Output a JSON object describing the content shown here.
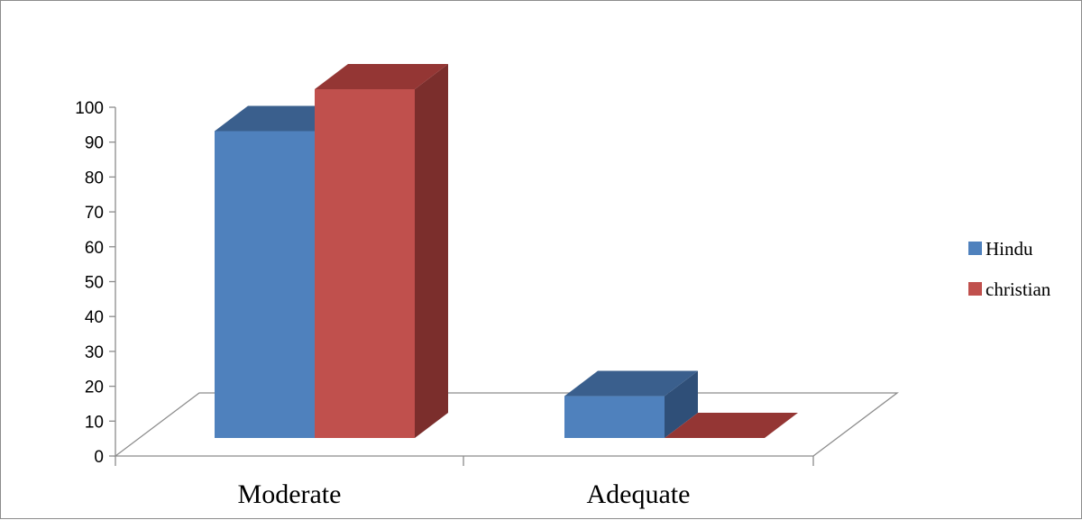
{
  "chart_data": {
    "type": "bar",
    "style": "3d-clustered-column",
    "categories": [
      "Moderate",
      "Adequate"
    ],
    "series": [
      {
        "name": "Hindu",
        "values": [
          88,
          12
        ],
        "color": "#4F81BD",
        "top_color": "#3A5F8D",
        "side_color": "#2F4F78"
      },
      {
        "name": "christian",
        "values": [
          100,
          0
        ],
        "color": "#C0504D",
        "top_color": "#943634",
        "side_color": "#7B2E2C"
      }
    ],
    "y_ticks": [
      "0",
      "10",
      "20",
      "30",
      "40",
      "50",
      "60",
      "70",
      "80",
      "90",
      "100"
    ],
    "ylim": [
      0,
      100
    ],
    "title": "",
    "xlabel": "",
    "ylabel": "",
    "grid": false,
    "legend_position": "right"
  }
}
